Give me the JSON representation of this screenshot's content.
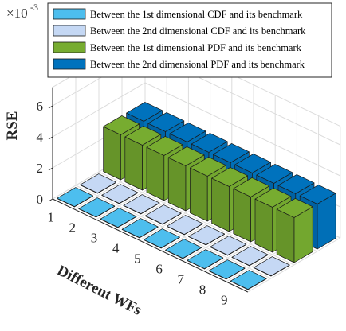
{
  "chart_data": {
    "type": "bar",
    "subtype": "3d-grouped-bar",
    "xlabel": "Different WFs",
    "ylabel": "RSE",
    "exponent_label": "×10",
    "exponent_power": "-3",
    "categories": [
      "1",
      "2",
      "3",
      "4",
      "5",
      "6",
      "7",
      "8",
      "9"
    ],
    "yticks": [
      "0",
      "2",
      "4",
      "6"
    ],
    "ylim": [
      0,
      7.2
    ],
    "grid": true,
    "legend_position": "top",
    "series": [
      {
        "name": "Between the 1st dimensional CDF and its benchmark",
        "color": "#4DBEEE",
        "values": [
          0.02,
          0.02,
          0.02,
          0.02,
          0.02,
          0.02,
          0.02,
          0.02,
          0.02
        ]
      },
      {
        "name": "Between the 2nd dimensional CDF and its benchmark",
        "color": "#C5D8F4",
        "values": [
          0.02,
          0.02,
          0.02,
          0.02,
          0.02,
          0.02,
          0.02,
          0.02,
          0.02
        ]
      },
      {
        "name": "Between the 1st dimensional PDF  and its benchmark",
        "color": "#77AC30",
        "values": [
          2.9,
          2.9,
          2.9,
          2.9,
          2.9,
          2.9,
          2.9,
          2.9,
          2.9
        ]
      },
      {
        "name": "Between the 2nd dimensional PDF and its benchmark",
        "color": "#0072BD",
        "values": [
          2.9,
          2.9,
          2.9,
          2.9,
          2.9,
          2.9,
          2.9,
          2.9,
          2.9
        ]
      }
    ]
  }
}
